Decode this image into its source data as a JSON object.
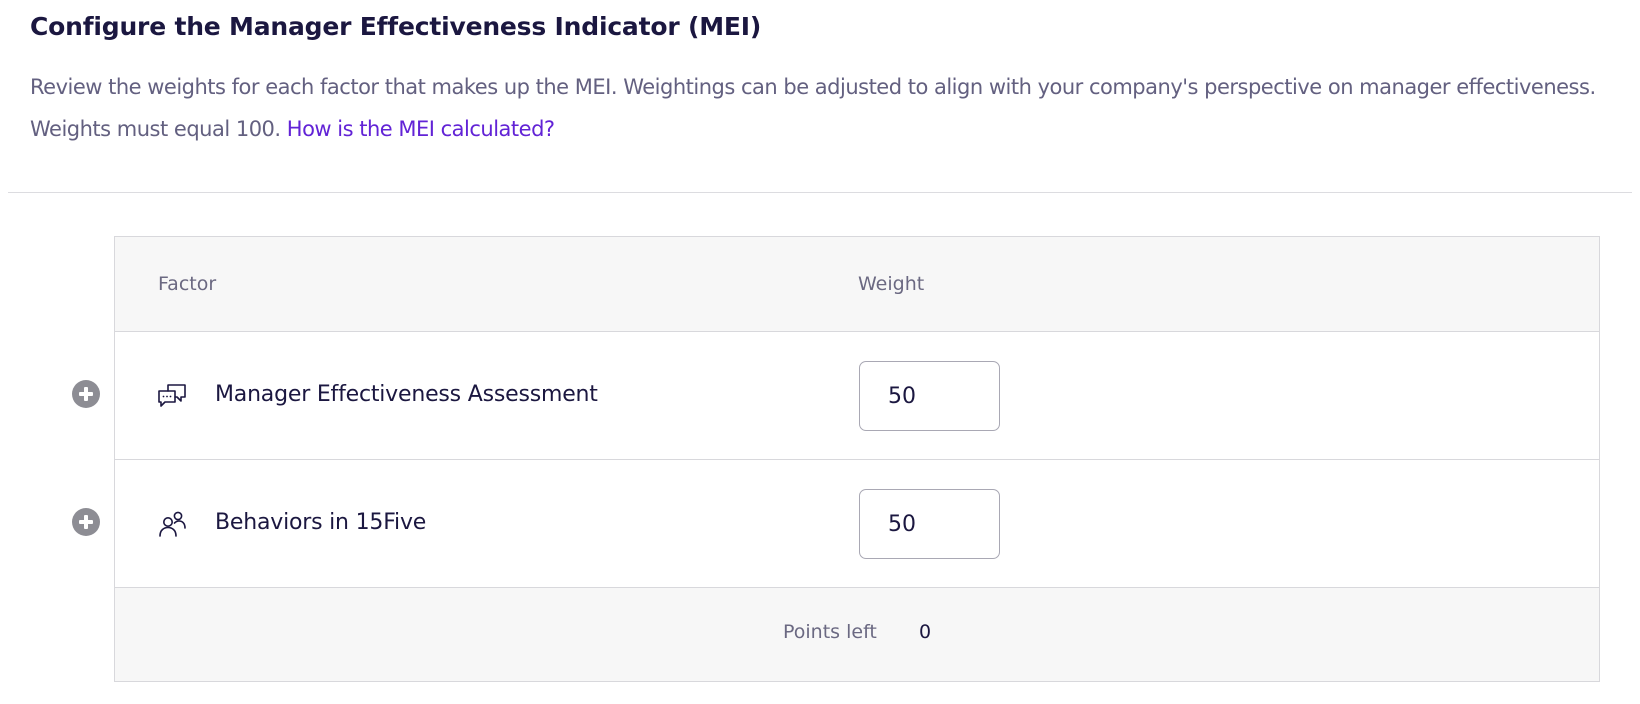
{
  "header": {
    "title": "Configure the Manager Effectiveness Indicator (MEI)",
    "description": "Review the weights for each factor that makes up the MEI. Weightings can be adjusted to align with your company's perspective on manager effectiveness. Weights must equal 100.",
    "help_link": "How is the MEI calculated?"
  },
  "table": {
    "columns": {
      "factor": "Factor",
      "weight": "Weight"
    },
    "rows": [
      {
        "icon": "chat-bubbles-icon",
        "factor": "Manager Effectiveness Assessment",
        "weight": "50"
      },
      {
        "icon": "people-icon",
        "factor": "Behaviors in 15Five",
        "weight": "50"
      }
    ],
    "footer": {
      "points_left_label": "Points left",
      "points_left_value": "0"
    }
  },
  "colors": {
    "link": "#6223d6",
    "title": "#1b1740",
    "muted_text": "#636080",
    "header_bg": "#f7f7f7",
    "add_icon": "#8d8d94"
  }
}
